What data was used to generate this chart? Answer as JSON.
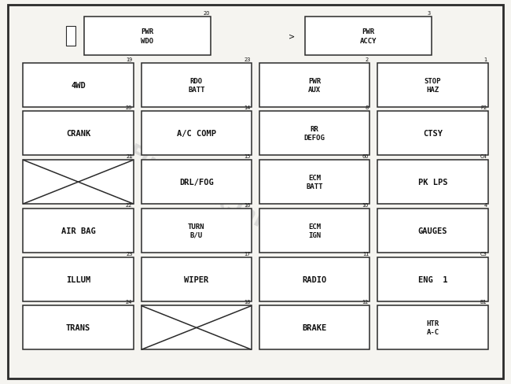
{
  "background_color": "#f5f4f0",
  "border_color": "#2a2a2a",
  "text_color": "#111111",
  "watermark_text": "Fuse-Box.inFo",
  "watermark_color": "#c8c8c8",
  "fig_w": 6.5,
  "fig_h": 4.89,
  "fuses": [
    {
      "label": "PWR\nWDO",
      "num": "20",
      "col": 1,
      "row": 0,
      "colspan": 1,
      "crossed": false
    },
    {
      "label": "PWR\nACCY",
      "num": "3",
      "col": 3,
      "row": 0,
      "colspan": 1,
      "crossed": false
    },
    {
      "label": "4WD",
      "num": "19",
      "col": 0,
      "row": 1,
      "colspan": 1,
      "crossed": false
    },
    {
      "label": "RDO\nBATT",
      "num": "23",
      "col": 1,
      "row": 1,
      "colspan": 1,
      "crossed": false
    },
    {
      "label": "PWR\nAUX",
      "num": "2",
      "col": 2,
      "row": 1,
      "colspan": 1,
      "crossed": false
    },
    {
      "label": "STOP\nHAZ",
      "num": "1",
      "col": 3,
      "row": 1,
      "colspan": 1,
      "crossed": false
    },
    {
      "label": "CRANK",
      "num": "20",
      "col": 0,
      "row": 2,
      "colspan": 1,
      "crossed": false
    },
    {
      "label": "A/C COMP",
      "num": "14",
      "col": 1,
      "row": 2,
      "colspan": 1,
      "crossed": false
    },
    {
      "label": "RR\nDEFOG",
      "num": "8",
      "col": 2,
      "row": 2,
      "colspan": 1,
      "crossed": false
    },
    {
      "label": "CTSY",
      "num": "P2",
      "col": 3,
      "row": 2,
      "colspan": 1,
      "crossed": false
    },
    {
      "label": "",
      "num": "21",
      "col": 0,
      "row": 3,
      "colspan": 1,
      "crossed": true
    },
    {
      "label": "DRL/FOG",
      "num": "15",
      "col": 1,
      "row": 3,
      "colspan": 1,
      "crossed": false
    },
    {
      "label": "ECM\nBATT",
      "num": "60",
      "col": 2,
      "row": 3,
      "colspan": 1,
      "crossed": false
    },
    {
      "label": "PK LPS",
      "num": "C4",
      "col": 3,
      "row": 3,
      "colspan": 1,
      "crossed": false
    },
    {
      "label": "AIR BAG",
      "num": "22",
      "col": 0,
      "row": 4,
      "colspan": 1,
      "crossed": false
    },
    {
      "label": "TURN\nB/U",
      "num": "16",
      "col": 1,
      "row": 4,
      "colspan": 1,
      "crossed": false
    },
    {
      "label": "ECM\nIGN",
      "num": "10",
      "col": 2,
      "row": 4,
      "colspan": 1,
      "crossed": false
    },
    {
      "label": "GAUGES",
      "num": "4",
      "col": 3,
      "row": 4,
      "colspan": 1,
      "crossed": false
    },
    {
      "label": "ILLUM",
      "num": "23",
      "col": 0,
      "row": 5,
      "colspan": 1,
      "crossed": false
    },
    {
      "label": "WIPER",
      "num": "17",
      "col": 1,
      "row": 5,
      "colspan": 1,
      "crossed": false
    },
    {
      "label": "RADIO",
      "num": "11",
      "col": 2,
      "row": 5,
      "colspan": 1,
      "crossed": false
    },
    {
      "label": "ENG  1",
      "num": "C3",
      "col": 3,
      "row": 5,
      "colspan": 1,
      "crossed": false
    },
    {
      "label": "TRANS",
      "num": "24",
      "col": 0,
      "row": 6,
      "colspan": 1,
      "crossed": false
    },
    {
      "label": "",
      "num": "18",
      "col": 1,
      "row": 6,
      "colspan": 1,
      "crossed": true
    },
    {
      "label": "BRAKE",
      "num": "12",
      "col": 2,
      "row": 6,
      "colspan": 1,
      "crossed": false
    },
    {
      "label": "HTR\nA-C",
      "num": "B1",
      "col": 3,
      "row": 6,
      "colspan": 1,
      "crossed": false
    }
  ]
}
